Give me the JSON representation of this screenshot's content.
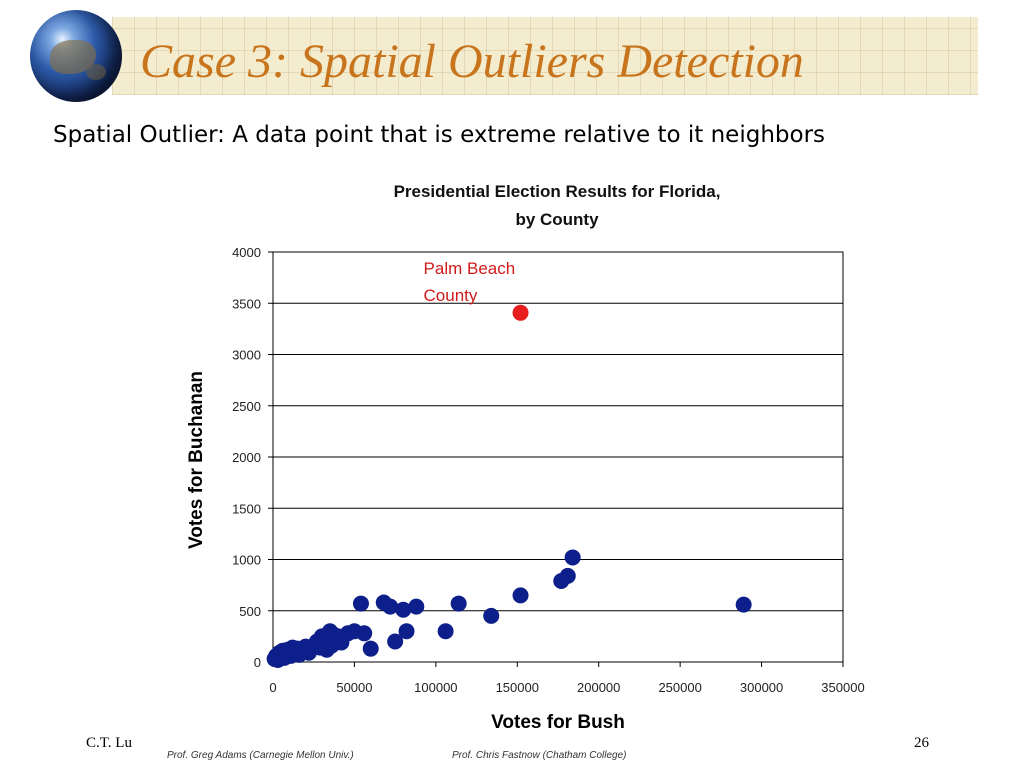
{
  "slide": {
    "title": "Case 3: Spatial Outliers Detection",
    "subtitle": "Spatial Outlier: A data point that is extreme relative to it neighbors",
    "footer_left": "C.T. Lu",
    "page_number": "26",
    "credits": [
      "Prof. Greg Adams (Carnegie Mellon Univ.)",
      "Prof. Chris Fastnow (Chatham College)"
    ]
  },
  "colors": {
    "title": "#c8741c",
    "banner": "#f4ecce",
    "points": "#0d1f8a",
    "outlier": "#e81e1e",
    "annotation": "#d11a1a"
  },
  "chart_data": {
    "type": "scatter",
    "title_lines": [
      "Presidential Election Results for Florida,",
      "by County"
    ],
    "xlabel": "Votes for Bush",
    "ylabel": "Votes for Buchanan",
    "xlim": [
      0,
      350000
    ],
    "ylim": [
      0,
      4000
    ],
    "xticks": [
      0,
      50000,
      100000,
      150000,
      200000,
      250000,
      300000,
      350000
    ],
    "xtick_labels": [
      "0",
      "50000",
      "100000",
      "150000",
      "200000",
      "250000",
      "300000",
      "350000"
    ],
    "yticks": [
      0,
      500,
      1000,
      1500,
      2000,
      2500,
      3000,
      3500,
      4000
    ],
    "ytick_labels": [
      "0",
      "500",
      "1000",
      "1500",
      "2000",
      "2500",
      "3000",
      "3500",
      "4000"
    ],
    "grid": "horizontal",
    "annotation": {
      "lines": [
        "Palm Beach",
        "County"
      ],
      "x": 152000,
      "y": 3407
    },
    "outlier": {
      "x": 152000,
      "y": 3407
    },
    "points": [
      [
        1000,
        30
      ],
      [
        2000,
        60
      ],
      [
        3000,
        20
      ],
      [
        4000,
        90
      ],
      [
        5000,
        50
      ],
      [
        6000,
        110
      ],
      [
        7000,
        40
      ],
      [
        8000,
        70
      ],
      [
        9000,
        120
      ],
      [
        10000,
        80
      ],
      [
        11000,
        60
      ],
      [
        12000,
        140
      ],
      [
        13000,
        100
      ],
      [
        15000,
        130
      ],
      [
        16000,
        70
      ],
      [
        18000,
        120
      ],
      [
        20000,
        150
      ],
      [
        22000,
        90
      ],
      [
        25000,
        160
      ],
      [
        27000,
        200
      ],
      [
        29000,
        140
      ],
      [
        30000,
        250
      ],
      [
        31000,
        180
      ],
      [
        32000,
        230
      ],
      [
        33000,
        120
      ],
      [
        34000,
        200
      ],
      [
        35000,
        300
      ],
      [
        36000,
        160
      ],
      [
        37000,
        270
      ],
      [
        38000,
        220
      ],
      [
        40000,
        250
      ],
      [
        42000,
        190
      ],
      [
        46000,
        280
      ],
      [
        50000,
        300
      ],
      [
        54000,
        570
      ],
      [
        56000,
        280
      ],
      [
        60000,
        130
      ],
      [
        68000,
        580
      ],
      [
        72000,
        540
      ],
      [
        75000,
        200
      ],
      [
        80000,
        510
      ],
      [
        82000,
        300
      ],
      [
        88000,
        540
      ],
      [
        106000,
        300
      ],
      [
        114000,
        570
      ],
      [
        134000,
        450
      ],
      [
        152000,
        650
      ],
      [
        177000,
        790
      ],
      [
        181000,
        840
      ],
      [
        184000,
        1020
      ],
      [
        289000,
        560
      ]
    ]
  }
}
